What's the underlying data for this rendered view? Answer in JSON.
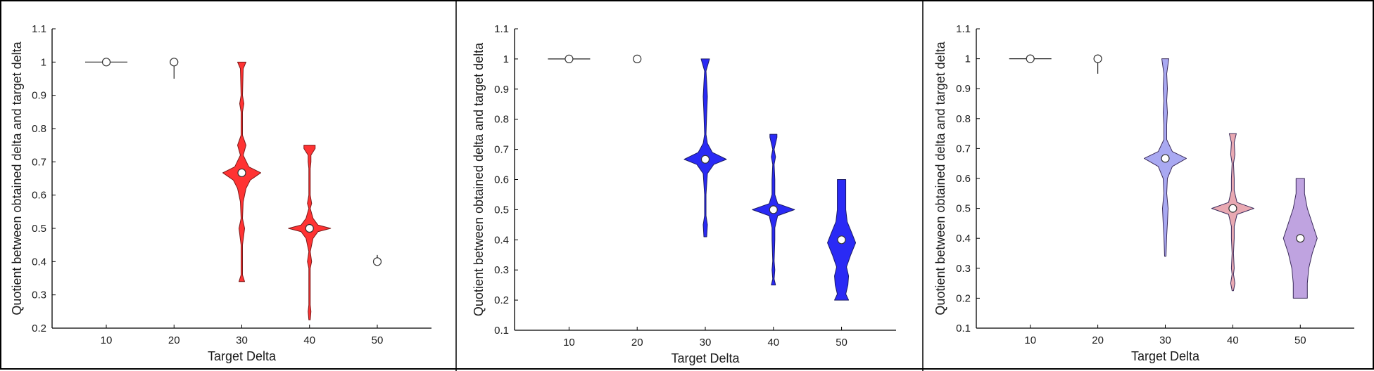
{
  "chart_data": [
    {
      "type": "violin",
      "xlabel": "Target Delta",
      "ylabel": "Quotient between obtained delta and target delta",
      "categories": [
        "10",
        "20",
        "30",
        "40",
        "50"
      ],
      "ylim": [
        0.2,
        1.1
      ],
      "yticks": [
        "0.2",
        "0.3",
        "0.4",
        "0.5",
        "0.6",
        "0.7",
        "0.8",
        "0.9",
        "1",
        "1.1"
      ],
      "fill_color": "#ff3333",
      "edge_color": "#7a1a1a",
      "grid": false,
      "groups": [
        {
          "x": "10",
          "median": 1.0,
          "min": 1.0,
          "max": 1.0,
          "profile": [
            [
              1.0,
              0.3
            ]
          ]
        },
        {
          "x": "20",
          "median": 1.0,
          "min": 0.95,
          "max": 1.0,
          "profile": [
            [
              0.95,
              0.0
            ],
            [
              0.975,
              0.01
            ],
            [
              1.0,
              0.01
            ]
          ]
        },
        {
          "x": "30",
          "median": 0.667,
          "min": 0.34,
          "max": 1.0,
          "profile": [
            [
              0.34,
              0.04
            ],
            [
              0.36,
              0.01
            ],
            [
              0.45,
              0.01
            ],
            [
              0.5,
              0.04
            ],
            [
              0.53,
              0.01
            ],
            [
              0.58,
              0.02
            ],
            [
              0.62,
              0.06
            ],
            [
              0.645,
              0.12
            ],
            [
              0.667,
              0.27
            ],
            [
              0.685,
              0.1
            ],
            [
              0.72,
              0.02
            ],
            [
              0.75,
              0.06
            ],
            [
              0.78,
              0.01
            ],
            [
              0.85,
              0.01
            ],
            [
              0.875,
              0.03
            ],
            [
              0.9,
              0.01
            ],
            [
              0.98,
              0.02
            ],
            [
              1.0,
              0.06
            ]
          ]
        },
        {
          "x": "40",
          "median": 0.5,
          "min": 0.225,
          "max": 0.75,
          "profile": [
            [
              0.225,
              0.01
            ],
            [
              0.25,
              0.02
            ],
            [
              0.27,
              0.01
            ],
            [
              0.38,
              0.01
            ],
            [
              0.4,
              0.03
            ],
            [
              0.43,
              0.01
            ],
            [
              0.47,
              0.05
            ],
            [
              0.49,
              0.12
            ],
            [
              0.5,
              0.3
            ],
            [
              0.51,
              0.12
            ],
            [
              0.53,
              0.05
            ],
            [
              0.56,
              0.01
            ],
            [
              0.575,
              0.03
            ],
            [
              0.6,
              0.01
            ],
            [
              0.68,
              0.01
            ],
            [
              0.7,
              0.02
            ],
            [
              0.72,
              0.02
            ],
            [
              0.74,
              0.08
            ],
            [
              0.75,
              0.08
            ]
          ]
        },
        {
          "x": "50",
          "median": 0.4,
          "min": 0.4,
          "max": 0.42,
          "profile": [
            [
              0.4,
              0.01
            ],
            [
              0.42,
              0.01
            ]
          ]
        }
      ]
    },
    {
      "type": "violin",
      "xlabel": "Target Delta",
      "ylabel": "Quotient between obtained delta and target delta",
      "categories": [
        "10",
        "20",
        "30",
        "40",
        "50"
      ],
      "ylim": [
        0.1,
        1.1
      ],
      "yticks": [
        "0.1",
        "0.2",
        "0.3",
        "0.4",
        "0.5",
        "0.6",
        "0.7",
        "0.8",
        "0.9",
        "1",
        "1.1"
      ],
      "fill_color": "#2a2af5",
      "edge_color": "#1a1a66",
      "grid": false,
      "groups": [
        {
          "x": "10",
          "median": 1.0,
          "min": 1.0,
          "max": 1.0,
          "profile": [
            [
              1.0,
              0.3
            ]
          ]
        },
        {
          "x": "20",
          "median": 1.0,
          "min": 1.0,
          "max": 1.0,
          "profile": [
            [
              1.0,
              0.01
            ]
          ]
        },
        {
          "x": "30",
          "median": 0.667,
          "min": 0.41,
          "max": 1.0,
          "profile": [
            [
              0.41,
              0.02
            ],
            [
              0.45,
              0.03
            ],
            [
              0.48,
              0.01
            ],
            [
              0.55,
              0.01
            ],
            [
              0.62,
              0.03
            ],
            [
              0.65,
              0.12
            ],
            [
              0.667,
              0.3
            ],
            [
              0.69,
              0.1
            ],
            [
              0.72,
              0.03
            ],
            [
              0.75,
              0.01
            ],
            [
              0.82,
              0.02
            ],
            [
              0.875,
              0.03
            ],
            [
              0.92,
              0.02
            ],
            [
              0.96,
              0.01
            ],
            [
              1.0,
              0.06
            ]
          ]
        },
        {
          "x": "40",
          "median": 0.5,
          "min": 0.25,
          "max": 0.75,
          "profile": [
            [
              0.25,
              0.03
            ],
            [
              0.27,
              0.01
            ],
            [
              0.3,
              0.02
            ],
            [
              0.33,
              0.01
            ],
            [
              0.4,
              0.02
            ],
            [
              0.44,
              0.02
            ],
            [
              0.48,
              0.06
            ],
            [
              0.5,
              0.3
            ],
            [
              0.52,
              0.06
            ],
            [
              0.55,
              0.02
            ],
            [
              0.6,
              0.02
            ],
            [
              0.65,
              0.01
            ],
            [
              0.675,
              0.03
            ],
            [
              0.7,
              0.01
            ],
            [
              0.74,
              0.05
            ],
            [
              0.75,
              0.05
            ]
          ]
        },
        {
          "x": "50",
          "median": 0.4,
          "min": 0.2,
          "max": 0.6,
          "profile": [
            [
              0.2,
              0.1
            ],
            [
              0.22,
              0.06
            ],
            [
              0.25,
              0.09
            ],
            [
              0.28,
              0.1
            ],
            [
              0.31,
              0.07
            ],
            [
              0.35,
              0.13
            ],
            [
              0.39,
              0.2
            ],
            [
              0.42,
              0.15
            ],
            [
              0.46,
              0.08
            ],
            [
              0.5,
              0.06
            ],
            [
              0.56,
              0.06
            ],
            [
              0.6,
              0.06
            ]
          ]
        }
      ]
    },
    {
      "type": "violin",
      "xlabel": "Target Delta",
      "ylabel": "Quotient between obtained delta and target delta",
      "categories": [
        "10",
        "20",
        "30",
        "40",
        "50"
      ],
      "ylim": [
        0.1,
        1.1
      ],
      "yticks": [
        "0.1",
        "0.2",
        "0.3",
        "0.4",
        "0.5",
        "0.6",
        "0.7",
        "0.8",
        "0.9",
        "1",
        "1.1"
      ],
      "fill_colors": [
        "#e9a9b2",
        "#bfa3e0",
        "#a9a9f2"
      ],
      "edge_color": "#3a2a5a",
      "grid": false,
      "groups": [
        {
          "x": "10",
          "median": 1.0,
          "min": 1.0,
          "max": 1.0,
          "profile": [
            [
              1.0,
              0.3
            ]
          ]
        },
        {
          "x": "20",
          "median": 1.0,
          "min": 0.95,
          "max": 1.0,
          "profile": [
            [
              0.95,
              0.0
            ],
            [
              0.975,
              0.01
            ],
            [
              1.0,
              0.01
            ]
          ]
        },
        {
          "x": "30",
          "median": 0.667,
          "min": 0.34,
          "max": 1.0,
          "profile": [
            [
              0.34,
              0.01
            ],
            [
              0.41,
              0.02
            ],
            [
              0.45,
              0.03
            ],
            [
              0.5,
              0.04
            ],
            [
              0.55,
              0.02
            ],
            [
              0.6,
              0.03
            ],
            [
              0.64,
              0.1
            ],
            [
              0.667,
              0.3
            ],
            [
              0.69,
              0.1
            ],
            [
              0.73,
              0.02
            ],
            [
              0.78,
              0.02
            ],
            [
              0.82,
              0.03
            ],
            [
              0.86,
              0.02
            ],
            [
              0.9,
              0.03
            ],
            [
              0.95,
              0.02
            ],
            [
              1.0,
              0.05
            ]
          ]
        },
        {
          "x": "40",
          "median": 0.5,
          "min": 0.225,
          "max": 0.75,
          "profile": [
            [
              0.225,
              0.01
            ],
            [
              0.25,
              0.03
            ],
            [
              0.28,
              0.01
            ],
            [
              0.3,
              0.02
            ],
            [
              0.35,
              0.01
            ],
            [
              0.4,
              0.02
            ],
            [
              0.44,
              0.02
            ],
            [
              0.48,
              0.06
            ],
            [
              0.5,
              0.3
            ],
            [
              0.52,
              0.06
            ],
            [
              0.56,
              0.02
            ],
            [
              0.6,
              0.02
            ],
            [
              0.65,
              0.01
            ],
            [
              0.68,
              0.03
            ],
            [
              0.72,
              0.02
            ],
            [
              0.75,
              0.05
            ]
          ]
        },
        {
          "x": "50",
          "median": 0.4,
          "min": 0.2,
          "max": 0.6,
          "profile": [
            [
              0.2,
              0.1
            ],
            [
              0.25,
              0.1
            ],
            [
              0.3,
              0.12
            ],
            [
              0.35,
              0.17
            ],
            [
              0.4,
              0.24
            ],
            [
              0.45,
              0.17
            ],
            [
              0.5,
              0.1
            ],
            [
              0.55,
              0.06
            ],
            [
              0.6,
              0.06
            ]
          ]
        }
      ]
    }
  ]
}
